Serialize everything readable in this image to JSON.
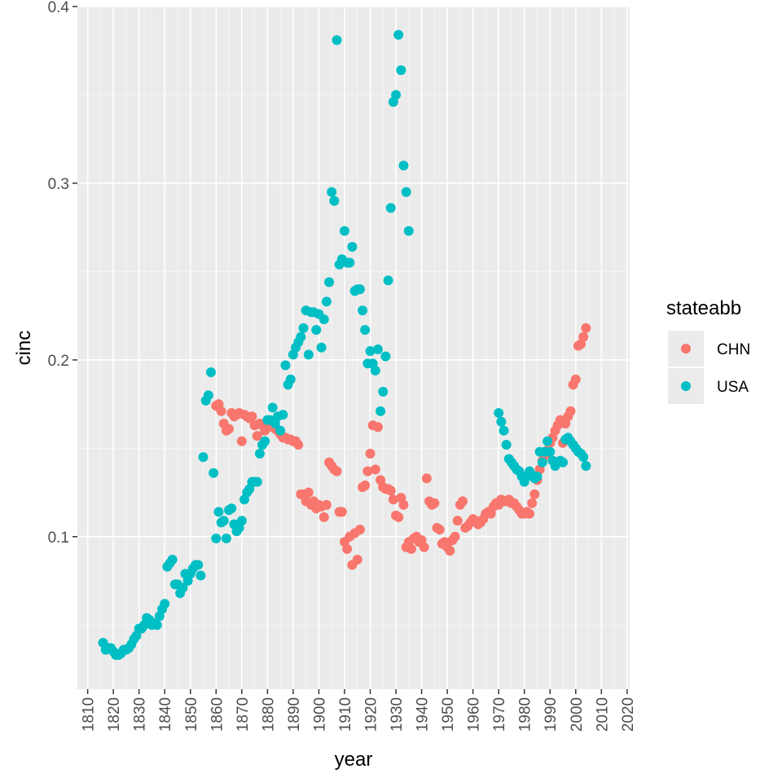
{
  "chart_data": {
    "type": "scatter",
    "xlabel": "year",
    "ylabel": "cinc",
    "xlim": [
      1806,
      2021
    ],
    "ylim": [
      0.0137,
      0.4
    ],
    "x_ticks": [
      1810,
      1820,
      1830,
      1840,
      1850,
      1860,
      1870,
      1880,
      1890,
      1900,
      1910,
      1920,
      1930,
      1940,
      1950,
      1960,
      1970,
      1980,
      1990,
      2000,
      2010,
      2020
    ],
    "x_tick_labels": [
      "1810",
      "1820",
      "1830",
      "1840",
      "1850",
      "1860",
      "1870",
      "1880",
      "1890",
      "1900",
      "1910",
      "1920",
      "1930",
      "1940",
      "1950",
      "1960",
      "1970",
      "1980",
      "1990",
      "2000",
      "2010",
      "2020"
    ],
    "y_ticks": [
      0.1,
      0.2,
      0.3,
      0.4
    ],
    "y_tick_labels": [
      "0.1",
      "0.2",
      "0.3",
      "0.4"
    ],
    "grid": true,
    "legend": {
      "title": "stateabb",
      "position": "right"
    },
    "series": [
      {
        "name": "CHN",
        "color": "#F8766D",
        "points": [
          [
            1860,
            0.174
          ],
          [
            1861,
            0.175
          ],
          [
            1862,
            0.171
          ],
          [
            1863,
            0.164
          ],
          [
            1864,
            0.16
          ],
          [
            1865,
            0.161
          ],
          [
            1866,
            0.17
          ],
          [
            1867,
            0.168
          ],
          [
            1868,
            0.169
          ],
          [
            1869,
            0.17
          ],
          [
            1870,
            0.154
          ],
          [
            1871,
            0.169
          ],
          [
            1872,
            0.168
          ],
          [
            1873,
            0.167
          ],
          [
            1874,
            0.168
          ],
          [
            1875,
            0.163
          ],
          [
            1876,
            0.157
          ],
          [
            1877,
            0.164
          ],
          [
            1878,
            0.163
          ],
          [
            1879,
            0.16
          ],
          [
            1880,
            0.162
          ],
          [
            1881,
            0.163
          ],
          [
            1882,
            0.162
          ],
          [
            1883,
            0.161
          ],
          [
            1884,
            0.16
          ],
          [
            1885,
            0.158
          ],
          [
            1886,
            0.156
          ],
          [
            1887,
            0.156
          ],
          [
            1888,
            0.155
          ],
          [
            1889,
            0.155
          ],
          [
            1890,
            0.154
          ],
          [
            1891,
            0.154
          ],
          [
            1892,
            0.152
          ],
          [
            1893,
            0.124
          ],
          [
            1894,
            0.124
          ],
          [
            1895,
            0.12
          ],
          [
            1896,
            0.125
          ],
          [
            1897,
            0.118
          ],
          [
            1898,
            0.12
          ],
          [
            1899,
            0.116
          ],
          [
            1900,
            0.118
          ],
          [
            1901,
            0.117
          ],
          [
            1902,
            0.111
          ],
          [
            1903,
            0.118
          ],
          [
            1904,
            0.142
          ],
          [
            1905,
            0.14
          ],
          [
            1906,
            0.138
          ],
          [
            1907,
            0.137
          ],
          [
            1908,
            0.114
          ],
          [
            1909,
            0.114
          ],
          [
            1910,
            0.097
          ],
          [
            1911,
            0.093
          ],
          [
            1912,
            0.1
          ],
          [
            1913,
            0.084
          ],
          [
            1914,
            0.102
          ],
          [
            1915,
            0.087
          ],
          [
            1916,
            0.104
          ],
          [
            1917,
            0.128
          ],
          [
            1918,
            0.129
          ],
          [
            1919,
            0.137
          ],
          [
            1920,
            0.147
          ],
          [
            1921,
            0.163
          ],
          [
            1922,
            0.138
          ],
          [
            1923,
            0.162
          ],
          [
            1924,
            0.132
          ],
          [
            1925,
            0.128
          ],
          [
            1926,
            0.127
          ],
          [
            1927,
            0.127
          ],
          [
            1928,
            0.126
          ],
          [
            1929,
            0.121
          ],
          [
            1930,
            0.112
          ],
          [
            1931,
            0.111
          ],
          [
            1932,
            0.122
          ],
          [
            1933,
            0.118
          ],
          [
            1934,
            0.094
          ],
          [
            1935,
            0.097
          ],
          [
            1936,
            0.093
          ],
          [
            1937,
            0.099
          ],
          [
            1938,
            0.1
          ],
          [
            1939,
            0.097
          ],
          [
            1940,
            0.098
          ],
          [
            1941,
            0.094
          ],
          [
            1942,
            0.133
          ],
          [
            1943,
            0.12
          ],
          [
            1944,
            0.118
          ],
          [
            1945,
            0.119
          ],
          [
            1946,
            0.105
          ],
          [
            1947,
            0.104
          ],
          [
            1948,
            0.096
          ],
          [
            1949,
            0.097
          ],
          [
            1950,
            0.094
          ],
          [
            1951,
            0.092
          ],
          [
            1952,
            0.098
          ],
          [
            1953,
            0.1
          ],
          [
            1954,
            0.109
          ],
          [
            1955,
            0.118
          ],
          [
            1956,
            0.12
          ],
          [
            1957,
            0.105
          ],
          [
            1958,
            0.106
          ],
          [
            1959,
            0.108
          ],
          [
            1960,
            0.11
          ],
          [
            1961,
            0.109
          ],
          [
            1962,
            0.107
          ],
          [
            1963,
            0.108
          ],
          [
            1964,
            0.11
          ],
          [
            1965,
            0.113
          ],
          [
            1966,
            0.114
          ],
          [
            1967,
            0.113
          ],
          [
            1968,
            0.117
          ],
          [
            1969,
            0.119
          ],
          [
            1970,
            0.118
          ],
          [
            1971,
            0.121
          ],
          [
            1972,
            0.12
          ],
          [
            1973,
            0.12
          ],
          [
            1974,
            0.121
          ],
          [
            1975,
            0.119
          ],
          [
            1976,
            0.119
          ],
          [
            1977,
            0.117
          ],
          [
            1978,
            0.115
          ],
          [
            1979,
            0.113
          ],
          [
            1980,
            0.113
          ],
          [
            1981,
            0.114
          ],
          [
            1982,
            0.113
          ],
          [
            1983,
            0.119
          ],
          [
            1984,
            0.124
          ],
          [
            1985,
            0.132
          ],
          [
            1986,
            0.138
          ],
          [
            1987,
            0.143
          ],
          [
            1988,
            0.146
          ],
          [
            1989,
            0.149
          ],
          [
            1990,
            0.153
          ],
          [
            1991,
            0.156
          ],
          [
            1992,
            0.16
          ],
          [
            1993,
            0.163
          ],
          [
            1994,
            0.166
          ],
          [
            1995,
            0.153
          ],
          [
            1996,
            0.164
          ],
          [
            1997,
            0.168
          ],
          [
            1998,
            0.171
          ],
          [
            1999,
            0.186
          ],
          [
            2000,
            0.189
          ],
          [
            2001,
            0.208
          ],
          [
            2002,
            0.209
          ],
          [
            2003,
            0.213
          ],
          [
            2004,
            0.218
          ]
        ]
      },
      {
        "name": "USA",
        "color": "#00BFC4",
        "points": [
          [
            1816,
            0.04
          ],
          [
            1817,
            0.036
          ],
          [
            1818,
            0.037
          ],
          [
            1819,
            0.037
          ],
          [
            1820,
            0.035
          ],
          [
            1821,
            0.033
          ],
          [
            1822,
            0.033
          ],
          [
            1823,
            0.034
          ],
          [
            1824,
            0.036
          ],
          [
            1825,
            0.036
          ],
          [
            1826,
            0.037
          ],
          [
            1827,
            0.039
          ],
          [
            1828,
            0.042
          ],
          [
            1829,
            0.044
          ],
          [
            1830,
            0.048
          ],
          [
            1831,
            0.048
          ],
          [
            1832,
            0.05
          ],
          [
            1833,
            0.054
          ],
          [
            1834,
            0.053
          ],
          [
            1835,
            0.05
          ],
          [
            1836,
            0.051
          ],
          [
            1837,
            0.05
          ],
          [
            1838,
            0.055
          ],
          [
            1839,
            0.059
          ],
          [
            1840,
            0.062
          ],
          [
            1841,
            0.083
          ],
          [
            1842,
            0.085
          ],
          [
            1843,
            0.087
          ],
          [
            1844,
            0.073
          ],
          [
            1845,
            0.073
          ],
          [
            1846,
            0.068
          ],
          [
            1847,
            0.071
          ],
          [
            1848,
            0.079
          ],
          [
            1849,
            0.075
          ],
          [
            1850,
            0.079
          ],
          [
            1851,
            0.082
          ],
          [
            1852,
            0.084
          ],
          [
            1853,
            0.084
          ],
          [
            1854,
            0.078
          ],
          [
            1855,
            0.145
          ],
          [
            1856,
            0.177
          ],
          [
            1857,
            0.18
          ],
          [
            1858,
            0.193
          ],
          [
            1859,
            0.136
          ],
          [
            1860,
            0.099
          ],
          [
            1861,
            0.114
          ],
          [
            1862,
            0.108
          ],
          [
            1863,
            0.109
          ],
          [
            1864,
            0.099
          ],
          [
            1865,
            0.115
          ],
          [
            1866,
            0.116
          ],
          [
            1867,
            0.107
          ],
          [
            1868,
            0.103
          ],
          [
            1869,
            0.105
          ],
          [
            1870,
            0.109
          ],
          [
            1871,
            0.121
          ],
          [
            1872,
            0.125
          ],
          [
            1873,
            0.127
          ],
          [
            1874,
            0.131
          ],
          [
            1875,
            0.131
          ],
          [
            1876,
            0.131
          ],
          [
            1877,
            0.147
          ],
          [
            1878,
            0.152
          ],
          [
            1879,
            0.154
          ],
          [
            1880,
            0.166
          ],
          [
            1881,
            0.166
          ],
          [
            1882,
            0.173
          ],
          [
            1883,
            0.164
          ],
          [
            1884,
            0.168
          ],
          [
            1885,
            0.16
          ],
          [
            1886,
            0.169
          ],
          [
            1887,
            0.197
          ],
          [
            1888,
            0.186
          ],
          [
            1889,
            0.189
          ],
          [
            1890,
            0.203
          ],
          [
            1891,
            0.207
          ],
          [
            1892,
            0.21
          ],
          [
            1893,
            0.213
          ],
          [
            1894,
            0.218
          ],
          [
            1895,
            0.228
          ],
          [
            1896,
            0.203
          ],
          [
            1897,
            0.227
          ],
          [
            1898,
            0.227
          ],
          [
            1899,
            0.217
          ],
          [
            1900,
            0.226
          ],
          [
            1901,
            0.207
          ],
          [
            1902,
            0.223
          ],
          [
            1903,
            0.233
          ],
          [
            1904,
            0.244
          ],
          [
            1905,
            0.295
          ],
          [
            1906,
            0.29
          ],
          [
            1907,
            0.381
          ],
          [
            1908,
            0.254
          ],
          [
            1909,
            0.257
          ],
          [
            1910,
            0.273
          ],
          [
            1911,
            0.255
          ],
          [
            1912,
            0.255
          ],
          [
            1913,
            0.264
          ],
          [
            1914,
            0.239
          ],
          [
            1915,
            0.24
          ],
          [
            1916,
            0.24
          ],
          [
            1917,
            0.228
          ],
          [
            1918,
            0.217
          ],
          [
            1919,
            0.198
          ],
          [
            1920,
            0.205
          ],
          [
            1921,
            0.198
          ],
          [
            1922,
            0.194
          ],
          [
            1923,
            0.206
          ],
          [
            1924,
            0.171
          ],
          [
            1925,
            0.182
          ],
          [
            1926,
            0.202
          ],
          [
            1927,
            0.245
          ],
          [
            1928,
            0.286
          ],
          [
            1929,
            0.346
          ],
          [
            1930,
            0.35
          ],
          [
            1931,
            0.384
          ],
          [
            1932,
            0.364
          ],
          [
            1933,
            0.31
          ],
          [
            1934,
            0.295
          ],
          [
            1935,
            0.273
          ],
          [
            1970,
            0.17
          ],
          [
            1971,
            0.165
          ],
          [
            1972,
            0.16
          ],
          [
            1973,
            0.152
          ],
          [
            1974,
            0.144
          ],
          [
            1975,
            0.142
          ],
          [
            1976,
            0.14
          ],
          [
            1977,
            0.138
          ],
          [
            1978,
            0.137
          ],
          [
            1979,
            0.134
          ],
          [
            1980,
            0.131
          ],
          [
            1981,
            0.134
          ],
          [
            1982,
            0.137
          ],
          [
            1983,
            0.135
          ],
          [
            1984,
            0.133
          ],
          [
            1985,
            0.134
          ],
          [
            1986,
            0.148
          ],
          [
            1987,
            0.142
          ],
          [
            1988,
            0.148
          ],
          [
            1989,
            0.154
          ],
          [
            1990,
            0.148
          ],
          [
            1991,
            0.143
          ],
          [
            1992,
            0.14
          ],
          [
            1993,
            0.142
          ],
          [
            1994,
            0.143
          ],
          [
            1995,
            0.142
          ],
          [
            1996,
            0.155
          ],
          [
            1997,
            0.156
          ],
          [
            1998,
            0.154
          ],
          [
            1999,
            0.152
          ],
          [
            2000,
            0.15
          ],
          [
            2001,
            0.148
          ],
          [
            2002,
            0.147
          ],
          [
            2003,
            0.145
          ],
          [
            2004,
            0.14
          ]
        ]
      }
    ]
  }
}
